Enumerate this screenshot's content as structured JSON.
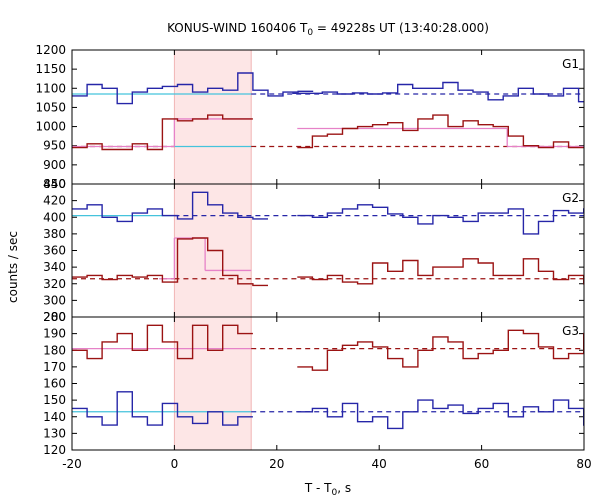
{
  "chart_data": {
    "type": "line",
    "title_prefix": "KONUS-WIND 160406 T",
    "title_sub": "0",
    "title_suffix": " = 49228s UT (13:40:28.000)",
    "xlabel_prefix": "T - T",
    "xlabel_sub": "0",
    "xlabel_suffix": ", s",
    "ylabel": "counts / sec",
    "xlim": [
      -20,
      80
    ],
    "x_ticks": [
      "-20",
      "0",
      "20",
      "40",
      "60",
      "80"
    ],
    "highlight_interval": [
      0,
      15
    ],
    "colors": {
      "blue": "#2626a8",
      "red": "#9b1313",
      "cyan": "#45c3dc",
      "pink": "#e682c8",
      "band": "#fde6e6"
    },
    "panels": [
      {
        "label": "G1",
        "ylim": [
          850,
          1200
        ],
        "yticks": [
          "850",
          "900",
          "950",
          "1000",
          "1050",
          "1100",
          "1150",
          "1200"
        ],
        "series": [
          {
            "color": "blue",
            "segments": [
              {
                "start": -20,
                "step": 2.944,
                "values": [
                  1080,
                  1110,
                  1100,
                  1060,
                  1090,
                  1100,
                  1105,
                  1110,
                  1090,
                  1100,
                  1095,
                  1140,
                  1095,
                  1080,
                  1090,
                  1092
                ]
              },
              {
                "start": 23,
                "step": 2.944,
                "values": [
                  1087,
                  1087,
                  1090,
                  1085,
                  1088,
                  1085,
                  1088,
                  1110,
                  1100,
                  1100,
                  1115,
                  1095,
                  1090,
                  1070,
                  1080,
                  1100,
                  1085,
                  1080,
                  1100,
                  1065
                ]
              }
            ],
            "background": [
              {
                "x": [
                  -20,
                  15
                ],
                "y": 1085,
                "style": "solid",
                "color": "cyan"
              },
              {
                "x": [
                  15,
                  80
                ],
                "y": 1085,
                "style": "dashed"
              }
            ]
          },
          {
            "color": "red",
            "segments": [
              {
                "start": -20,
                "step": 2.944,
                "values": [
                  945,
                  955,
                  940,
                  940,
                  955,
                  940,
                  1020,
                  1015,
                  1020,
                  1030,
                  1020,
                  1020
                ]
              },
              {
                "start": 24,
                "step": 2.944,
                "values": [
                  945,
                  975,
                  980,
                  995,
                  1000,
                  1005,
                  1010,
                  990,
                  1020,
                  1030,
                  1000,
                  1015,
                  1005,
                  1000,
                  975,
                  950,
                  945,
                  960,
                  945
                ]
              }
            ],
            "background": [
              {
                "x": [
                  -20,
                  0
                ],
                "y": 948,
                "style": "dashed"
              },
              {
                "x": [
                  0,
                  15
                ],
                "y": 948,
                "style": "solid",
                "color": "cyan"
              },
              {
                "x": [
                  15,
                  80
                ],
                "y": 948,
                "style": "dashed"
              }
            ],
            "fit": [
              {
                "x": [
                  -20,
                  0
                ],
                "y": 948
              },
              {
                "x": [
                  0,
                  15
                ],
                "y": 1020
              },
              {
                "x": [
                  24,
                  65
                ],
                "y": 995
              },
              {
                "x": [
                  65,
                  80
                ],
                "y": 948
              }
            ]
          }
        ]
      },
      {
        "label": "G2",
        "ylim": [
          280,
          440
        ],
        "yticks": [
          "280",
          "300",
          "320",
          "340",
          "360",
          "380",
          "400",
          "420",
          "440"
        ],
        "series": [
          {
            "color": "blue",
            "segments": [
              {
                "start": -20,
                "step": 2.944,
                "values": [
                  410,
                  415,
                  400,
                  395,
                  405,
                  410,
                  402,
                  398,
                  430,
                  415,
                  405,
                  400,
                  398
                ]
              },
              {
                "start": 24,
                "step": 2.944,
                "values": [
                  402,
                  400,
                  405,
                  410,
                  415,
                  412,
                  404,
                  400,
                  392,
                  402,
                  400,
                  395,
                  405,
                  405,
                  410,
                  380,
                  395,
                  408,
                  405,
                  410
                ]
              }
            ],
            "background": [
              {
                "x": [
                  -20,
                  0
                ],
                "y": 402,
                "style": "solid",
                "color": "cyan"
              },
              {
                "x": [
                  0,
                  80
                ],
                "y": 402,
                "style": "dashed"
              }
            ]
          },
          {
            "color": "red",
            "segments": [
              {
                "start": -20,
                "step": 2.944,
                "values": [
                  328,
                  330,
                  325,
                  330,
                  328,
                  330,
                  322,
                  374,
                  375,
                  360,
                  330,
                  320,
                  318
                ]
              },
              {
                "start": 24,
                "step": 2.944,
                "values": [
                  328,
                  325,
                  330,
                  322,
                  320,
                  345,
                  335,
                  348,
                  330,
                  340,
                  340,
                  350,
                  345,
                  330,
                  330,
                  350,
                  335,
                  325,
                  330,
                  320
                ]
              }
            ],
            "background": [
              {
                "x": [
                  -20,
                  0
                ],
                "y": 326,
                "style": "dashed"
              },
              {
                "x": [
                  0,
                  80
                ],
                "y": 326,
                "style": "dashed"
              }
            ],
            "fit": [
              {
                "x": [
                  -3,
                  0
                ],
                "y": 326
              },
              {
                "x": [
                  0,
                  6
                ],
                "y": 375
              },
              {
                "x": [
                  6,
                  15
                ],
                "y": 336
              }
            ]
          }
        ]
      },
      {
        "label": "G3",
        "ylim": [
          120,
          200
        ],
        "yticks": [
          "120",
          "130",
          "140",
          "150",
          "160",
          "170",
          "180",
          "190",
          "200"
        ],
        "series": [
          {
            "color": "red",
            "segments": [
              {
                "start": -20,
                "step": 2.944,
                "values": [
                  180,
                  175,
                  185,
                  190,
                  180,
                  195,
                  185,
                  175,
                  195,
                  180,
                  195,
                  190
                ]
              },
              {
                "start": 24,
                "step": 2.944,
                "values": [
                  170,
                  168,
                  180,
                  183,
                  185,
                  182,
                  175,
                  170,
                  180,
                  188,
                  185,
                  175,
                  178,
                  180,
                  192,
                  190,
                  182,
                  175,
                  178,
                  190
                ]
              }
            ],
            "background": [
              {
                "x": [
                  -20,
                  15
                ],
                "y": 181,
                "style": "solid",
                "color": "pink"
              },
              {
                "x": [
                  15,
                  80
                ],
                "y": 181,
                "style": "dashed"
              }
            ]
          },
          {
            "color": "blue",
            "segments": [
              {
                "start": -20,
                "step": 2.944,
                "values": [
                  145,
                  140,
                  135,
                  155,
                  140,
                  135,
                  148,
                  140,
                  136,
                  143,
                  135,
                  140
                ]
              },
              {
                "start": 24,
                "step": 2.944,
                "values": [
                  143,
                  145,
                  140,
                  148,
                  137,
                  140,
                  133,
                  143,
                  150,
                  145,
                  147,
                  142,
                  145,
                  148,
                  140,
                  146,
                  143,
                  150,
                  145,
                  135
                ]
              }
            ],
            "background": [
              {
                "x": [
                  -20,
                  15
                ],
                "y": 143,
                "style": "solid",
                "color": "cyan"
              },
              {
                "x": [
                  15,
                  80
                ],
                "y": 143,
                "style": "dashed"
              }
            ]
          }
        ]
      }
    ]
  }
}
